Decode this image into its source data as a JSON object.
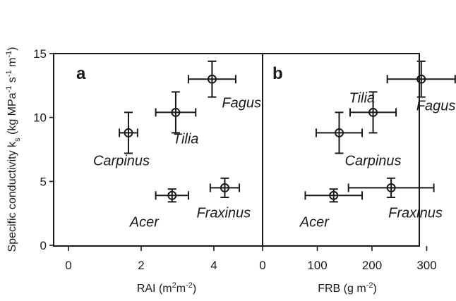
{
  "chart_data": [
    {
      "type": "scatter",
      "panel_label": "a",
      "xlabel": "RAI (m2m-2)",
      "xlabel_parts": {
        "base": "RAI (m",
        "sup1": "2",
        "mid": "m",
        "sup2": "-2",
        "end": ")"
      },
      "ylabel": "Specific conductivity ks (kg MPa-1 s-1 m-1)",
      "ylabel_parts": {
        "a": "Specific conductivity k",
        "sub": "s",
        "b": " (kg MPa",
        "s1": "-1",
        "c": " s",
        "s2": "-1",
        "d": " m",
        "s3": "-1",
        "e": ")"
      },
      "xlim": [
        0,
        5.2
      ],
      "ylim": [
        0,
        15
      ],
      "x_ticks": [
        0,
        2,
        4
      ],
      "y_ticks": [
        0,
        5,
        10,
        15
      ],
      "points": [
        {
          "name": "Fagus",
          "x": 3.95,
          "y": 13.0,
          "xerr": 0.65,
          "yerr": 1.4
        },
        {
          "name": "Tilia",
          "x": 2.95,
          "y": 10.4,
          "xerr": 0.55,
          "yerr": 1.6
        },
        {
          "name": "Carpinus",
          "x": 1.65,
          "y": 8.8,
          "xerr": 0.25,
          "yerr": 1.6
        },
        {
          "name": "Acer",
          "x": 2.85,
          "y": 3.9,
          "xerr": 0.45,
          "yerr": 0.5
        },
        {
          "name": "Fraxinus",
          "x": 4.3,
          "y": 4.5,
          "xerr": 0.4,
          "yerr": 0.75
        }
      ]
    },
    {
      "type": "scatter",
      "panel_label": "b",
      "xlabel": "FRB (g m-2)",
      "xlabel_parts": {
        "base": "FRB (g m",
        "sup1": "-2",
        "end": ")"
      },
      "xlim": [
        0,
        390
      ],
      "ylim": [
        0,
        15
      ],
      "x_ticks": [
        0,
        100,
        200,
        300
      ],
      "y_ticks": [
        0,
        5,
        10,
        15
      ],
      "points": [
        {
          "name": "Fagus",
          "x": 290,
          "y": 13.0,
          "xerr": 62,
          "yerr": 1.4
        },
        {
          "name": "Tilia",
          "x": 202,
          "y": 10.4,
          "xerr": 42,
          "yerr": 1.6
        },
        {
          "name": "Carpinus",
          "x": 140,
          "y": 8.8,
          "xerr": 42,
          "yerr": 1.6
        },
        {
          "name": "Acer",
          "x": 130,
          "y": 3.9,
          "xerr": 52,
          "yerr": 0.5
        },
        {
          "name": "Fraxinus",
          "x": 235,
          "y": 4.5,
          "xerr": 78,
          "yerr": 0.75
        }
      ]
    }
  ]
}
